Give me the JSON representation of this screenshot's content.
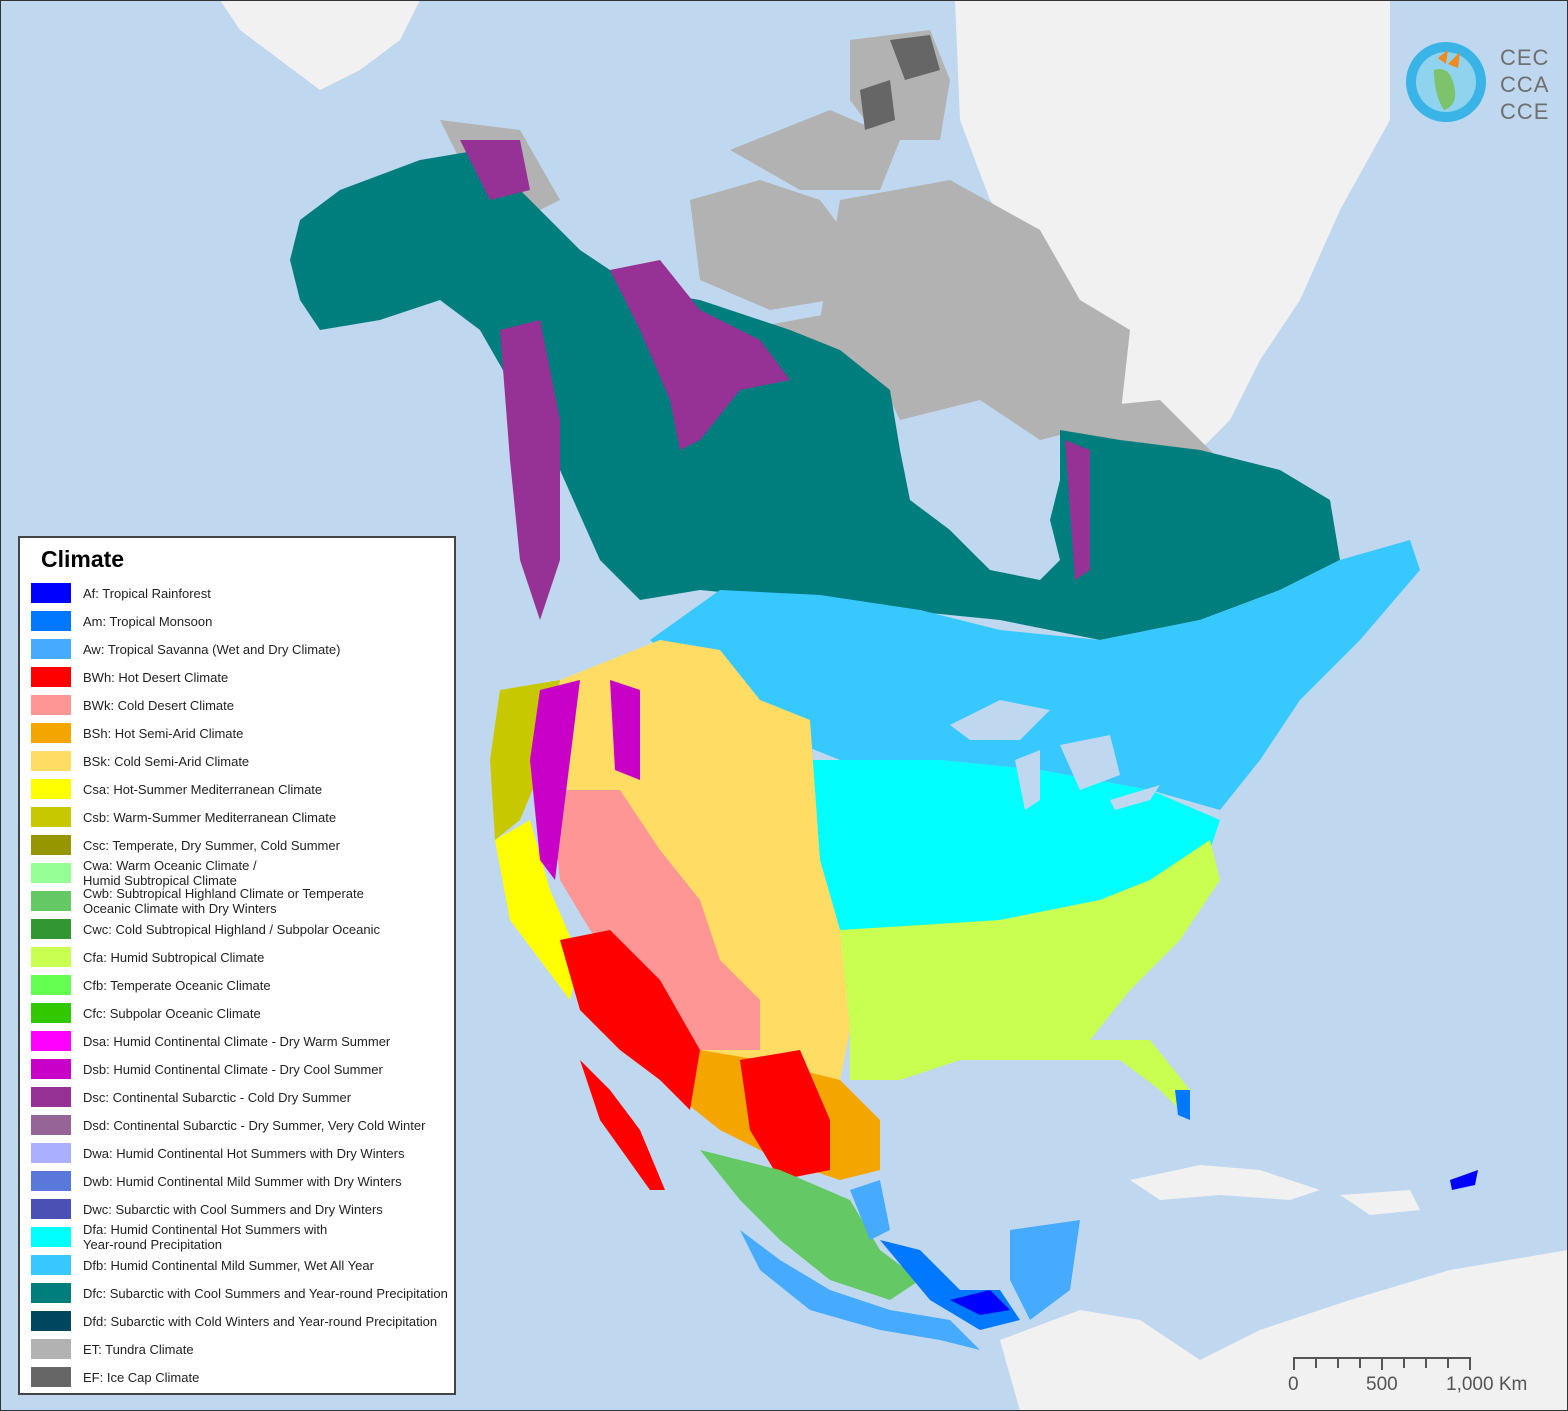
{
  "legend": {
    "title": "Climate",
    "items": [
      {
        "label": "Af: Tropical Rainforest",
        "color": "#0000ff"
      },
      {
        "label": "Am: Tropical Monsoon",
        "color": "#0078ff"
      },
      {
        "label": "Aw: Tropical Savanna (Wet and Dry Climate)",
        "color": "#46aaff"
      },
      {
        "label": "BWh: Hot Desert Climate",
        "color": "#ff0000"
      },
      {
        "label": "BWk: Cold Desert Climate",
        "color": "#ff9696"
      },
      {
        "label": "BSh: Hot Semi-Arid Climate",
        "color": "#f5a500"
      },
      {
        "label": "BSk: Cold Semi-Arid Climate",
        "color": "#ffdc64"
      },
      {
        "label": "Csa: Hot-Summer Mediterranean Climate",
        "color": "#ffff00"
      },
      {
        "label": "Csb: Warm-Summer Mediterranean Climate",
        "color": "#c8c800"
      },
      {
        "label": "Csc: Temperate, Dry Summer, Cold Summer",
        "color": "#969600"
      },
      {
        "label": "Cwa: Warm Oceanic Climate /\nHumid Subtropical Climate",
        "color": "#96ff96"
      },
      {
        "label": "Cwb: Subtropical Highland Climate or Temperate\nOceanic Climate with Dry Winters",
        "color": "#64c864"
      },
      {
        "label": "Cwc: Cold Subtropical Highland / Subpolar Oceanic",
        "color": "#329632"
      },
      {
        "label": "Cfa: Humid Subtropical Climate",
        "color": "#c8ff50"
      },
      {
        "label": "Cfb: Temperate Oceanic Climate",
        "color": "#64ff50"
      },
      {
        "label": "Cfc: Subpolar Oceanic Climate",
        "color": "#32c800"
      },
      {
        "label": "Dsa: Humid Continental Climate - Dry Warm Summer",
        "color": "#ff00ff"
      },
      {
        "label": "Dsb: Humid Continental Climate - Dry Cool Summer",
        "color": "#c800c8"
      },
      {
        "label": "Dsc: Continental Subarctic - Cold Dry Summer",
        "color": "#963296"
      },
      {
        "label": "Dsd: Continental Subarctic - Dry Summer, Very Cold Winter",
        "color": "#966496"
      },
      {
        "label": "Dwa: Humid Continental Hot Summers with Dry Winters",
        "color": "#aaafff"
      },
      {
        "label": "Dwb: Humid Continental Mild Summer with Dry Winters",
        "color": "#5a78dc"
      },
      {
        "label": "Dwc: Subarctic with Cool Summers and Dry Winters",
        "color": "#4b50b4"
      },
      {
        "label": "Dfa: Humid Continental Hot Summers with\nYear-round Precipitation",
        "color": "#00ffff"
      },
      {
        "label": "Dfb: Humid Continental Mild Summer, Wet All Year",
        "color": "#37c8ff"
      },
      {
        "label": "Dfc: Subarctic with Cool Summers and Year-round Precipitation",
        "color": "#007d7d"
      },
      {
        "label": "Dfd: Subarctic with Cold Winters and Year-round Precipitation",
        "color": "#00465f"
      },
      {
        "label": "ET: Tundra Climate",
        "color": "#b2b2b2"
      },
      {
        "label": "EF: Ice Cap Climate",
        "color": "#666666"
      }
    ]
  },
  "logo": {
    "lines": [
      "CEC",
      "CCA",
      "CCE"
    ]
  },
  "scale_bar": {
    "labels": [
      "0",
      "500",
      "1,000 Km"
    ]
  },
  "colors": {
    "ocean": "#c0d8ef",
    "other_land": "#f1f1f1"
  }
}
